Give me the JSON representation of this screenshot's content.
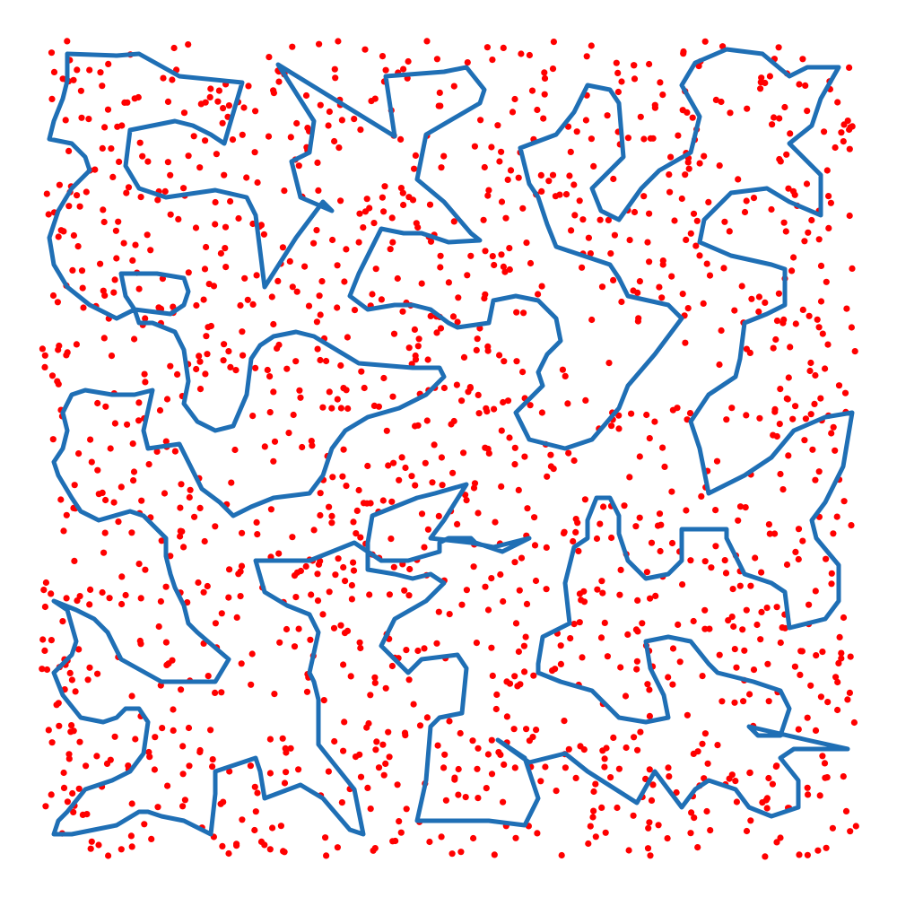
{
  "figure": {
    "background": "#ffffff",
    "tour_color": "#1f6fb5",
    "point_color": "#ff0000",
    "point_count": 1500,
    "tour_closed": true
  }
}
